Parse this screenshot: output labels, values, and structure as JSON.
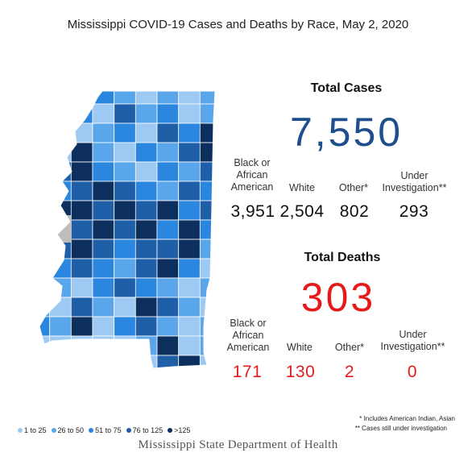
{
  "title": "Mississippi COVID-19 Cases and Deaths by Race, May 2, 2020",
  "cases": {
    "heading": "Total Cases",
    "total": "7,550",
    "categories": [
      {
        "label": "Black or African American",
        "value": "3,951"
      },
      {
        "label": "White",
        "value": "2,504"
      },
      {
        "label": "Other*",
        "value": "802"
      },
      {
        "label": "Under Investigation**",
        "value": "293"
      }
    ]
  },
  "deaths": {
    "heading": "Total Deaths",
    "total": "303",
    "categories": [
      {
        "label": "Black or African American",
        "value": "171"
      },
      {
        "label": "White",
        "value": "130"
      },
      {
        "label": "Other*",
        "value": "2"
      },
      {
        "label": "Under Investigation**",
        "value": "0"
      }
    ]
  },
  "footnotes": {
    "other": "* Includes American Indian, Asian",
    "under_investigation": "** Cases still under investigation"
  },
  "legend": [
    {
      "label": "1 to 25",
      "color": "#9dc9f3"
    },
    {
      "label": "26 to 50",
      "color": "#5aa6ea"
    },
    {
      "label": "51 to 75",
      "color": "#2a86de"
    },
    {
      "label": "76 to 125",
      "color": "#1f5fa8"
    },
    {
      "label": ">125",
      "color": "#0c2f5e"
    }
  ],
  "source": "Mississippi State Department of Health",
  "chart_data": {
    "type": "table",
    "title": "Mississippi COVID-19 Cases and Deaths by Race, May 2, 2020",
    "columns": [
      "Black or African American",
      "White",
      "Other*",
      "Under Investigation**"
    ],
    "rows": [
      {
        "name": "Total Cases",
        "total": 7550,
        "values": [
          3951,
          2504,
          802,
          293
        ]
      },
      {
        "name": "Total Deaths",
        "total": 303,
        "values": [
          171,
          130,
          2,
          0
        ]
      }
    ]
  }
}
